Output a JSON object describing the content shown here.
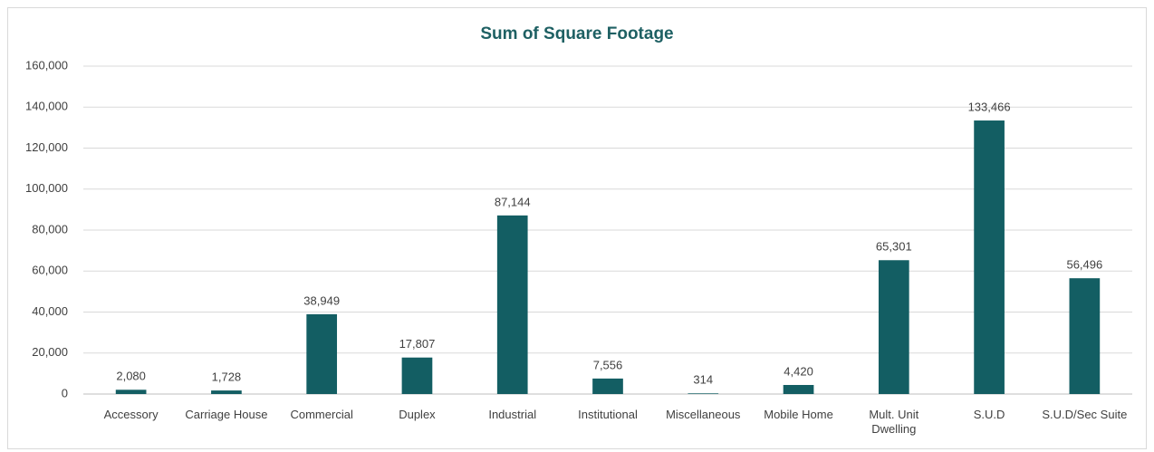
{
  "chart_data": {
    "type": "bar",
    "title": "Sum of Square Footage",
    "categories": [
      "Accessory",
      "Carriage House",
      "Commercial",
      "Duplex",
      "Industrial",
      "Institutional",
      "Miscellaneous",
      "Mobile Home",
      "Mult. Unit Dwelling",
      "S.U.D",
      "S.U.D/Sec Suite"
    ],
    "values": [
      2080,
      1728,
      38949,
      17807,
      87144,
      7556,
      314,
      4420,
      65301,
      133466,
      56496
    ],
    "value_labels": [
      "2,080",
      "1,728",
      "38,949",
      "17,807",
      "87,144",
      "7,556",
      "314",
      "4,420",
      "65,301",
      "133,466",
      "56,496"
    ],
    "color": "#135e63",
    "ylim": [
      0,
      160000
    ],
    "yticks": [
      0,
      {
        "value": 20000,
        "label": "20,000"
      },
      {
        "value": 40000,
        "label": "40,000"
      },
      {
        "value": 60000,
        "label": "60,000"
      },
      {
        "value": 80000,
        "label": "80,000"
      },
      {
        "value": 100000,
        "label": "100,000"
      },
      {
        "value": 120000,
        "label": "120,000"
      },
      {
        "value": 140000,
        "label": "140,000"
      },
      {
        "value": 160000,
        "label": "160,000"
      }
    ],
    "grid": true
  }
}
